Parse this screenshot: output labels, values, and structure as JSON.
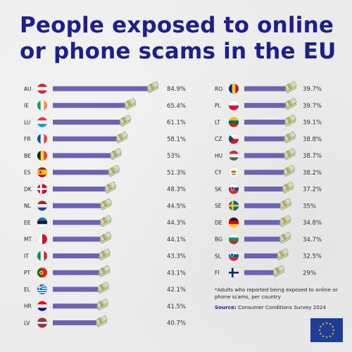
{
  "title": "People exposed to online or phone scams in the EU",
  "footnote": "*Adults who reported being exposed to online or phone scams, per country",
  "source_label": "Source:",
  "source_text": "Consumer Conditions Survey 2024",
  "colors": {
    "bar": "#6b63b3",
    "title": "#1d1f8c",
    "eu_blue": "#1f3c98",
    "eu_star": "#ffcc00"
  },
  "chart_data": {
    "type": "bar",
    "orientation": "horizontal",
    "unit": "%",
    "xlim": [
      0,
      84.9
    ],
    "columns": [
      {
        "rows": [
          {
            "code": "AU",
            "value": 84.9,
            "label": "84.9%"
          },
          {
            "code": "IE",
            "value": 65.4,
            "label": "65.4%"
          },
          {
            "code": "LU",
            "value": 61.1,
            "label": "61.1%"
          },
          {
            "code": "FR",
            "value": 58.1,
            "label": "58.1%"
          },
          {
            "code": "BE",
            "value": 53,
            "label": "53%"
          },
          {
            "code": "ES",
            "value": 51.3,
            "label": "51.3%"
          },
          {
            "code": "DK",
            "value": 48.3,
            "label": "48.3%"
          },
          {
            "code": "NL",
            "value": 44.5,
            "label": "44.5%"
          },
          {
            "code": "EE",
            "value": 44.3,
            "label": "44.3%"
          },
          {
            "code": "MT",
            "value": 44.1,
            "label": "44.1%"
          },
          {
            "code": "IT",
            "value": 43.3,
            "label": "43.3%"
          },
          {
            "code": "PT",
            "value": 43.1,
            "label": "43.1%"
          },
          {
            "code": "EL",
            "value": 42.1,
            "label": "42.1%"
          },
          {
            "code": "HR",
            "value": 41.5,
            "label": "41.5%"
          },
          {
            "code": "LV",
            "value": 40.7,
            "label": "40.7%"
          }
        ]
      },
      {
        "rows": [
          {
            "code": "RO",
            "value": 39.7,
            "label": "39.7%"
          },
          {
            "code": "PL",
            "value": 39.7,
            "label": "39.7%"
          },
          {
            "code": "LT",
            "value": 39.1,
            "label": "39.1%"
          },
          {
            "code": "CZ",
            "value": 38.8,
            "label": "38.8%"
          },
          {
            "code": "HU",
            "value": 38.7,
            "label": "38.7%"
          },
          {
            "code": "CY",
            "value": 38.2,
            "label": "38.2%"
          },
          {
            "code": "SK",
            "value": 37.2,
            "label": "37.2%"
          },
          {
            "code": "SE",
            "value": 35,
            "label": "35%"
          },
          {
            "code": "DE",
            "value": 34.8,
            "label": "34.8%"
          },
          {
            "code": "BG",
            "value": 34.7,
            "label": "34.7%"
          },
          {
            "code": "SL",
            "value": 32.5,
            "label": "32.5%"
          },
          {
            "code": "FI",
            "value": 29,
            "label": "29%"
          }
        ]
      }
    ]
  }
}
